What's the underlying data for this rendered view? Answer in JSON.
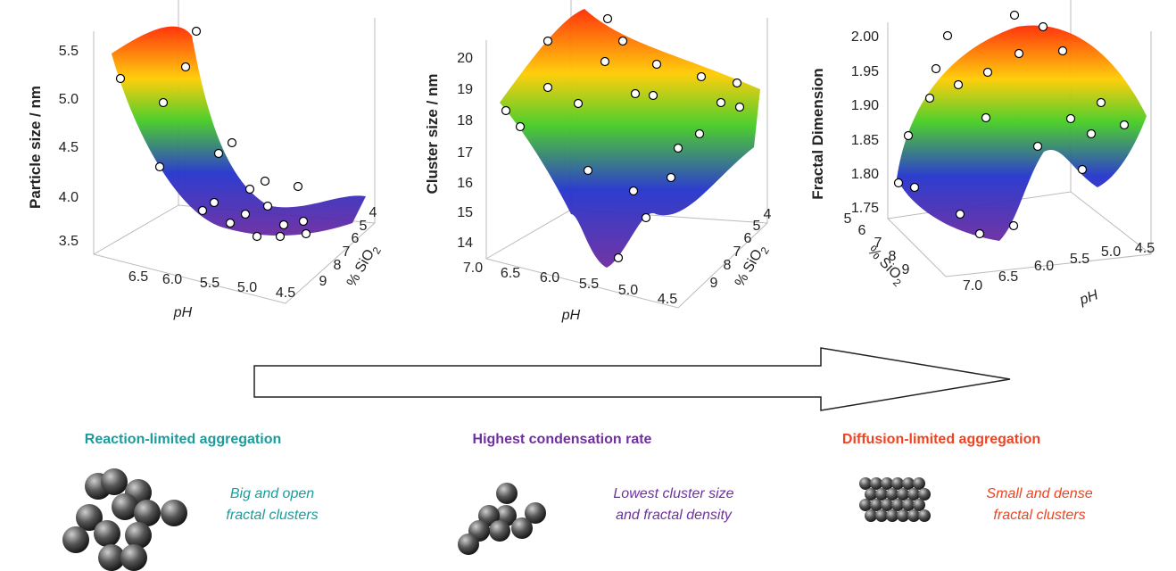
{
  "panels": [
    {
      "z_label": "Particle size / nm",
      "z_ticks": [
        "5.5",
        "5.0",
        "4.5",
        "4.0",
        "3.5"
      ],
      "x_label": "pH",
      "x_ticks": [
        "6.5",
        "6.0",
        "5.5",
        "5.0",
        "4.5"
      ],
      "y_label": "% SiO",
      "y_label_sub": "2",
      "y_ticks": [
        "9",
        "8",
        "7",
        "6",
        "5",
        "4"
      ]
    },
    {
      "z_label": "Cluster size / nm",
      "z_ticks": [
        "20",
        "19",
        "18",
        "17",
        "16",
        "15",
        "14"
      ],
      "x_label": "pH",
      "x_ticks": [
        "7.0",
        "6.5",
        "6.0",
        "5.5",
        "5.0",
        "4.5"
      ],
      "y_label": "% SiO",
      "y_label_sub": "2",
      "y_ticks": [
        "9",
        "8",
        "7",
        "6",
        "5",
        "4"
      ]
    },
    {
      "z_label": "Fractal Dimension",
      "z_ticks": [
        "2.00",
        "1.95",
        "1.90",
        "1.85",
        "1.80",
        "1.75"
      ],
      "x_label": "pH",
      "x_ticks": [
        "7.0",
        "6.5",
        "6.0",
        "5.5",
        "5.0",
        "4.5"
      ],
      "y_label": "% SiO",
      "y_label_sub": "2",
      "y_ticks": [
        "5",
        "6",
        "7",
        "8",
        "9"
      ]
    }
  ],
  "regimes": [
    {
      "title": "Reaction-limited aggregation",
      "description": [
        "Big and open",
        "fractal clusters"
      ]
    },
    {
      "title": "Highest condensation rate",
      "description": [
        "Lowest cluster size",
        "and fractal density"
      ]
    },
    {
      "title": "Diffusion-limited aggregation",
      "description": [
        "Small and dense",
        "fractal clusters"
      ]
    }
  ]
}
